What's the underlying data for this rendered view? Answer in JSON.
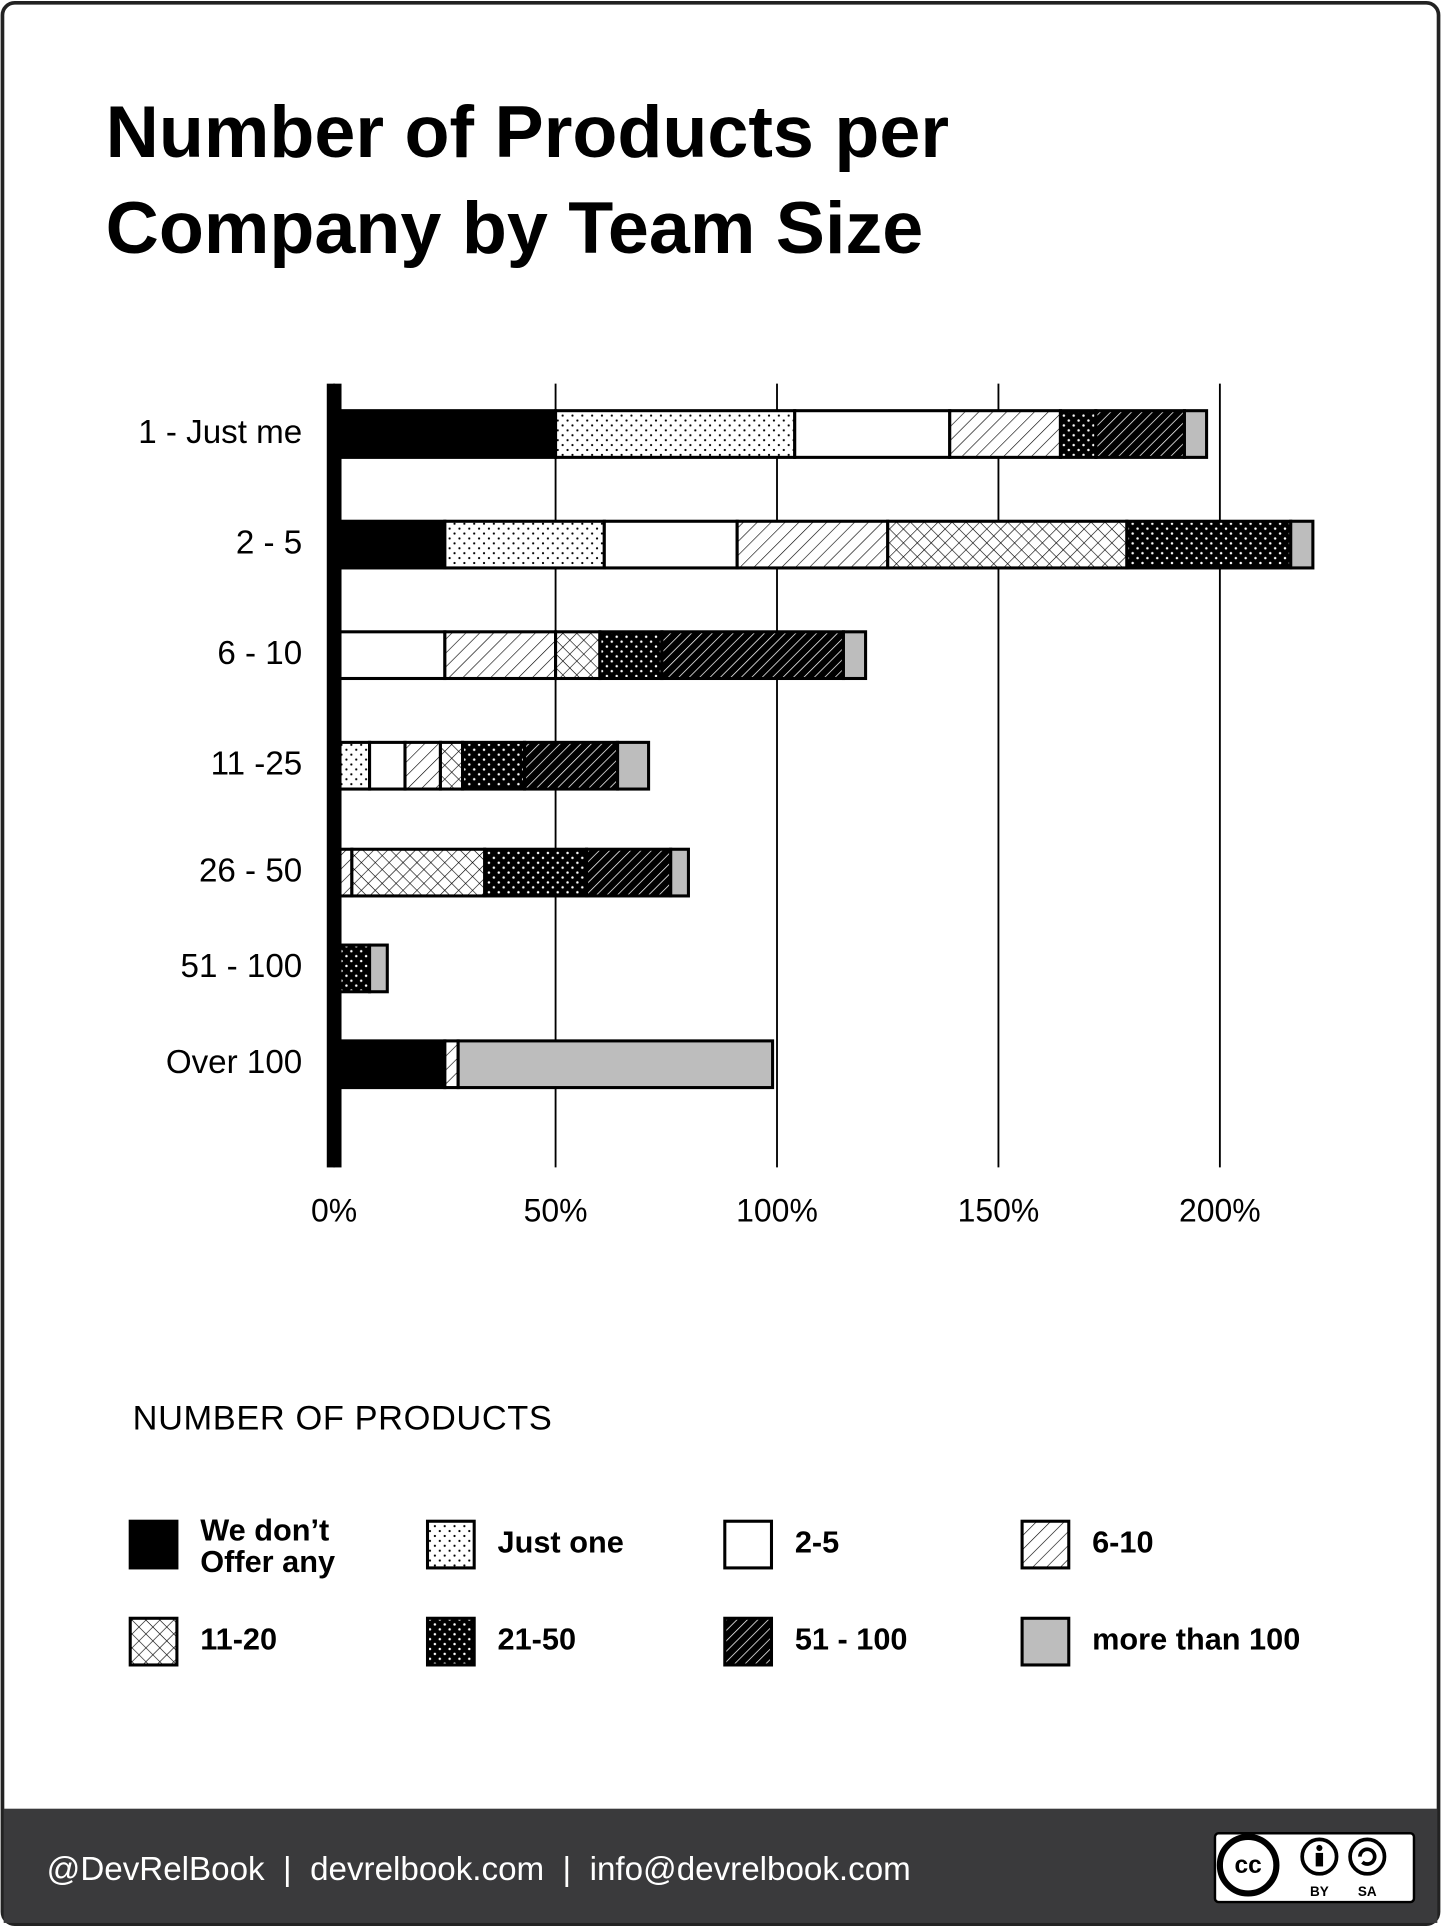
{
  "chart_data": {
    "type": "stacked_barh",
    "title": "Number of Products per Company by Team Size",
    "categories": [
      "1 - Just me",
      "2 - 5",
      "6 - 10",
      "11 -25",
      "26 - 50",
      "51 - 100",
      "Over 100"
    ],
    "series": [
      {
        "name": "We don’t Offer any",
        "color": "#000000",
        "pattern": "solid",
        "values": [
          50,
          25,
          0,
          0,
          0,
          0,
          25
        ]
      },
      {
        "name": "Just one",
        "color": "#ffffff",
        "pattern": "dots",
        "values": [
          54,
          36,
          0,
          8,
          0,
          0,
          0
        ]
      },
      {
        "name": "2-5",
        "color": "#ffffff",
        "pattern": "solid",
        "values": [
          35,
          30,
          25,
          8,
          0,
          0,
          0
        ]
      },
      {
        "name": "6-10",
        "color": "#ffffff",
        "pattern": "hatch",
        "values": [
          25,
          34,
          25,
          8,
          4,
          0,
          3
        ]
      },
      {
        "name": "11-20",
        "color": "#ffffff",
        "pattern": "crosshatch",
        "values": [
          0,
          54,
          10,
          5,
          30,
          0,
          0
        ]
      },
      {
        "name": "21-50",
        "color": "#000000",
        "pattern": "dots-inverse",
        "values": [
          8,
          37,
          14,
          14,
          23,
          8,
          0
        ]
      },
      {
        "name": "51 - 100",
        "color": "#000000",
        "pattern": "hatch-inverse",
        "values": [
          20,
          0,
          41,
          21,
          19,
          0,
          0
        ]
      },
      {
        "name": "more than 100",
        "color": "#bdbdbd",
        "pattern": "solid",
        "values": [
          5,
          5,
          5,
          7,
          4,
          4,
          71
        ]
      }
    ],
    "xlim": [
      0,
      200
    ],
    "xticks": [
      {
        "value": 0,
        "label": "0%"
      },
      {
        "value": 50,
        "label": "50%"
      },
      {
        "value": 100,
        "label": "100%"
      },
      {
        "value": 150,
        "label": "150%"
      },
      {
        "value": 200,
        "label": "200%"
      }
    ],
    "grid": true,
    "legend_title": "NUMBER OF PRODUCTS",
    "legend_position": "bottom"
  },
  "footer": {
    "text": "@DevRelBook  |  devrelbook.com  |  info@devrelbook.com",
    "license": [
      "BY",
      "SA"
    ]
  }
}
